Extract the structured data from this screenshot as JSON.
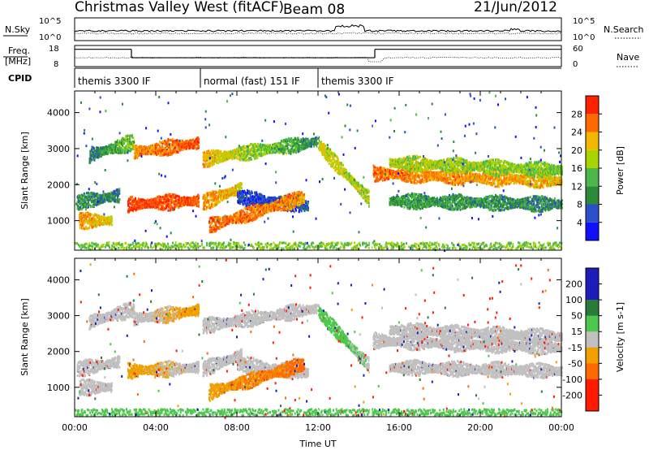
{
  "header": {
    "radar": "Christmas Valley West (fitACF)",
    "beam": "Beam 08",
    "date": "21/Jun/2012"
  },
  "strip_labels": {
    "nsky": "N.Sky",
    "nsearch": "N.Search",
    "freq_a": "Freq.",
    "freq_b": "[MHz]",
    "nave": "Nave",
    "cpid": "CPID"
  },
  "chart_data": [
    {
      "type": "line",
      "name": "noise",
      "series": [
        {
          "name": "N.Sky"
        },
        {
          "name": "N.Search"
        }
      ],
      "y_ticks": [
        "10^5",
        "10^0"
      ],
      "y_ticks_right": [
        "10^5",
        "10^0"
      ],
      "notes": "log-scale noise levels"
    },
    {
      "type": "line",
      "name": "freq-nave",
      "series": [
        {
          "name": "Freq."
        },
        {
          "name": "Nave"
        }
      ],
      "y_ticks": [
        "18",
        "8"
      ],
      "y_ticks_right": [
        "60",
        "0"
      ],
      "freq_segments": [
        {
          "x_start": 0.0,
          "x_end": 2.8,
          "freq": 16.2
        },
        {
          "x_start": 2.8,
          "x_end": 14.8,
          "freq": 12.2
        },
        {
          "x_start": 14.8,
          "x_end": 24.0,
          "freq": 16.2
        }
      ]
    },
    {
      "type": "table",
      "name": "cpid",
      "modes": [
        {
          "x_start": 0.0,
          "x_end": 6.2,
          "label": "themis 3300 IF"
        },
        {
          "x_start": 6.2,
          "x_end": 12.0,
          "label": "normal (fast) 151 IF"
        },
        {
          "x_start": 12.0,
          "x_end": 24.0,
          "label": "themis 3300 IF"
        }
      ]
    },
    {
      "type": "heatmap",
      "name": "power",
      "ylabel": "Slant Range [km]",
      "ylim": [
        180,
        4600
      ],
      "yticks": [
        1000,
        2000,
        3000,
        4000
      ],
      "xlim": [
        0,
        24
      ],
      "colorbar_label": "Power [dB]",
      "colorbar_ticks": [
        4,
        8,
        12,
        16,
        20,
        24,
        28
      ],
      "colorbar_range": [
        0,
        32
      ],
      "bands": [
        {
          "t0": 0.7,
          "t1": 2.9,
          "r0": 2820,
          "r1": 3180,
          "p": 9,
          "p1": 16
        },
        {
          "t0": 2.9,
          "t1": 6.1,
          "r0": 2900,
          "r1": 3150,
          "p": 24,
          "p1": 28
        },
        {
          "t0": 6.3,
          "t1": 12.0,
          "r0": 2700,
          "r1": 3200,
          "p": 22,
          "p1": 10
        },
        {
          "t0": 12.0,
          "t1": 14.5,
          "r0": 3100,
          "r1": 1600,
          "p": 20,
          "p1": 18
        },
        {
          "t0": 14.7,
          "t1": 24.0,
          "r0": 2300,
          "r1": 2100,
          "p": 26,
          "p1": 22
        },
        {
          "t0": 15.5,
          "t1": 24.0,
          "r0": 2600,
          "r1": 2400,
          "p": 18,
          "p1": 16
        },
        {
          "t0": 2.6,
          "t1": 6.1,
          "r0": 1450,
          "r1": 1550,
          "p": 29,
          "p1": 27
        },
        {
          "t0": 6.3,
          "t1": 8.2,
          "r0": 1500,
          "r1": 1900,
          "p": 25,
          "p1": 21
        },
        {
          "t0": 8.0,
          "t1": 11.5,
          "r0": 1650,
          "r1": 1400,
          "p": 5,
          "p1": 6
        },
        {
          "t0": 6.6,
          "t1": 11.3,
          "r0": 850,
          "r1": 1650,
          "p": 27,
          "p1": 24
        },
        {
          "t0": 0.1,
          "t1": 2.2,
          "r0": 1500,
          "r1": 1700,
          "p": 11,
          "p1": 9
        },
        {
          "t0": 0.2,
          "t1": 1.8,
          "r0": 1000,
          "r1": 1000,
          "p": 24,
          "p1": 20
        },
        {
          "t0": 15.5,
          "t1": 24.0,
          "r0": 1550,
          "r1": 1450,
          "p": 12,
          "p1": 10
        },
        {
          "t0": 0.0,
          "t1": 24.0,
          "r0": 300,
          "r1": 300,
          "p": 16,
          "p1": 16
        }
      ]
    },
    {
      "type": "heatmap",
      "name": "velocity",
      "ylabel": "Slant Range [km]",
      "ylim": [
        180,
        4600
      ],
      "yticks": [
        1000,
        2000,
        3000,
        4000
      ],
      "xlim": [
        0,
        24
      ],
      "xticks": [
        "00:00",
        "04:00",
        "08:00",
        "12:00",
        "16:00",
        "20:00",
        "00:00"
      ],
      "xlabel": "Time UT",
      "colorbar_label": "Velocity [m s-1]",
      "colorbar_ticks": [
        200,
        100,
        50,
        15,
        -15,
        -50,
        -100,
        -200
      ],
      "bands": [
        {
          "t0": 0.7,
          "t1": 2.9,
          "r0": 2820,
          "r1": 3180,
          "v": 0,
          "v1": 0
        },
        {
          "t0": 2.9,
          "t1": 6.1,
          "r0": 2900,
          "r1": 3150,
          "v": 0,
          "v1": -30
        },
        {
          "t0": 6.3,
          "t1": 12.0,
          "r0": 2700,
          "r1": 3200,
          "v": 0,
          "v1": 0
        },
        {
          "t0": 12.0,
          "t1": 14.5,
          "r0": 3100,
          "r1": 1600,
          "v": 40,
          "v1": 10
        },
        {
          "t0": 14.7,
          "t1": 24.0,
          "r0": 2300,
          "r1": 2100,
          "v": 0,
          "v1": 0
        },
        {
          "t0": 15.5,
          "t1": 24.0,
          "r0": 2600,
          "r1": 2400,
          "v": 0,
          "v1": 0
        },
        {
          "t0": 2.6,
          "t1": 6.1,
          "r0": 1450,
          "r1": 1550,
          "v": -30,
          "v1": 0
        },
        {
          "t0": 6.3,
          "t1": 8.2,
          "r0": 1500,
          "r1": 1900,
          "v": 0,
          "v1": 0
        },
        {
          "t0": 8.0,
          "t1": 11.5,
          "r0": 1650,
          "r1": 1400,
          "v": 0,
          "v1": 0
        },
        {
          "t0": 6.6,
          "t1": 11.3,
          "r0": 850,
          "r1": 1650,
          "v": -40,
          "v1": -60
        },
        {
          "t0": 0.1,
          "t1": 2.2,
          "r0": 1500,
          "r1": 1700,
          "v": 0,
          "v1": 0
        },
        {
          "t0": 0.2,
          "t1": 1.8,
          "r0": 1000,
          "r1": 1000,
          "v": 0,
          "v1": 0
        },
        {
          "t0": 15.5,
          "t1": 24.0,
          "r0": 1550,
          "r1": 1450,
          "v": 0,
          "v1": 0
        },
        {
          "t0": 0.0,
          "t1": 24.0,
          "r0": 300,
          "r1": 300,
          "v": 40,
          "v1": 40
        }
      ]
    }
  ]
}
